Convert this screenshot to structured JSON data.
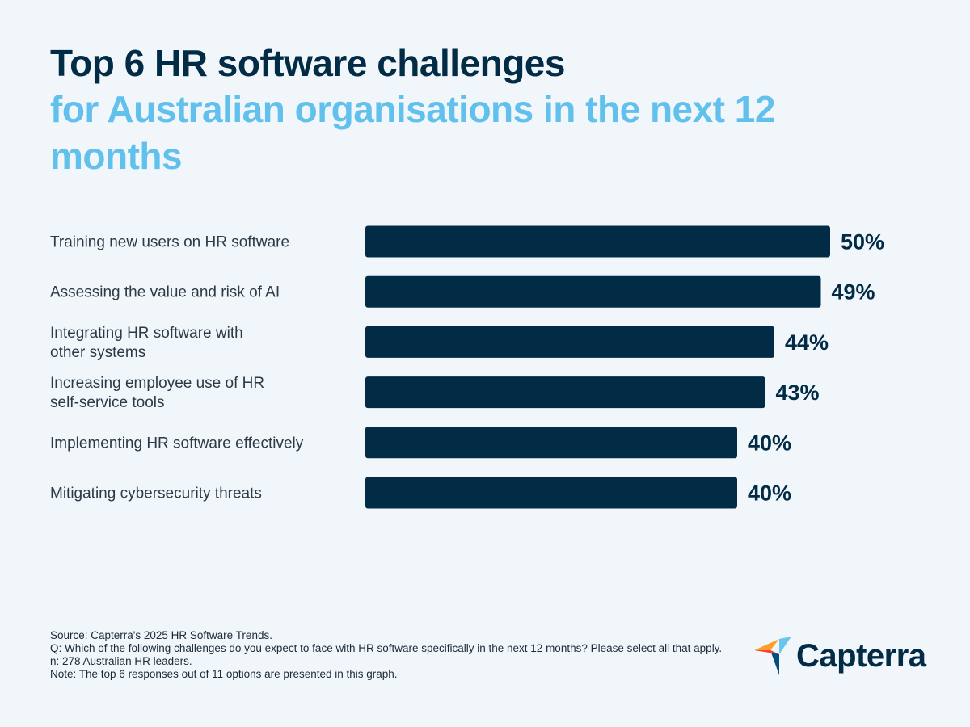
{
  "title": {
    "line1": "Top 6 HR software challenges",
    "line2": "for Australian organisations in the next 12 months"
  },
  "chart_data": {
    "type": "bar",
    "orientation": "horizontal",
    "categories": [
      [
        "Training new users on HR software"
      ],
      [
        "Assessing the value and risk of AI"
      ],
      [
        "Integrating HR software with",
        "other systems"
      ],
      [
        "Increasing employee use of HR",
        "self-service tools"
      ],
      [
        "Implementing HR software effectively"
      ],
      [
        "Mitigating cybersecurity threats"
      ]
    ],
    "values": [
      50,
      49,
      44,
      43,
      40,
      40
    ],
    "value_labels": [
      "50%",
      "49%",
      "44%",
      "43%",
      "40%",
      "40%"
    ],
    "bar_color": "#022c46",
    "grid": false,
    "legend": "none"
  },
  "footer": {
    "source": "Source: Capterra's  2025 HR Software Trends.",
    "question": "Q: Which of the following challenges do you expect to face with HR software specifically in the next 12 months? Please select all that apply.",
    "n": "n: 278 Australian HR leaders.",
    "note": "Note: The top 6 responses out of 11 options are presented in this graph."
  },
  "logo": {
    "text": "Capterra",
    "icon": "capterra-arrow-icon",
    "colors": [
      "#ff9d28",
      "#68c5ed",
      "#044d80",
      "#ff3d2e"
    ]
  }
}
